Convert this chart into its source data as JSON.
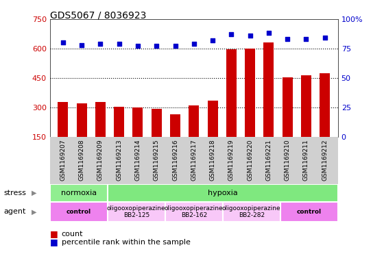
{
  "title": "GDS5067 / 8036923",
  "samples": [
    "GSM1169207",
    "GSM1169208",
    "GSM1169209",
    "GSM1169213",
    "GSM1169214",
    "GSM1169215",
    "GSM1169216",
    "GSM1169217",
    "GSM1169218",
    "GSM1169219",
    "GSM1169220",
    "GSM1169221",
    "GSM1169210",
    "GSM1169211",
    "GSM1169212"
  ],
  "counts": [
    330,
    320,
    330,
    305,
    300,
    295,
    265,
    310,
    335,
    595,
    600,
    630,
    455,
    465,
    475
  ],
  "percentiles": [
    80,
    78,
    79,
    79,
    77,
    77,
    77,
    79,
    82,
    87,
    86,
    88,
    83,
    83,
    84
  ],
  "ylim_left": [
    150,
    750
  ],
  "ylim_right": [
    0,
    100
  ],
  "yticks_left": [
    150,
    300,
    450,
    600,
    750
  ],
  "yticks_right": [
    0,
    25,
    50,
    75,
    100
  ],
  "bar_color": "#cc0000",
  "dot_color": "#0000cc",
  "plot_bg": "#ffffff",
  "xtick_bg": "#d0d0d0",
  "stress_norm_color": "#90ee90",
  "stress_hyp_color": "#7fe87f",
  "agent_control_color": "#ee82ee",
  "agent_oligo_color": "#f8c8f8",
  "stress_segments": [
    {
      "start": 0,
      "end": 3,
      "label": "normoxia"
    },
    {
      "start": 3,
      "end": 15,
      "label": "hypoxia"
    }
  ],
  "agent_segments": [
    {
      "start": 0,
      "end": 3,
      "label": "control",
      "bold": true
    },
    {
      "start": 3,
      "end": 6,
      "label": "oligooxopiperazine\nBB2-125",
      "bold": false
    },
    {
      "start": 6,
      "end": 9,
      "label": "oligooxopiperazine\nBB2-162",
      "bold": false
    },
    {
      "start": 9,
      "end": 12,
      "label": "oligooxopiperazine\nBB2-282",
      "bold": false
    },
    {
      "start": 12,
      "end": 15,
      "label": "control",
      "bold": true
    }
  ]
}
